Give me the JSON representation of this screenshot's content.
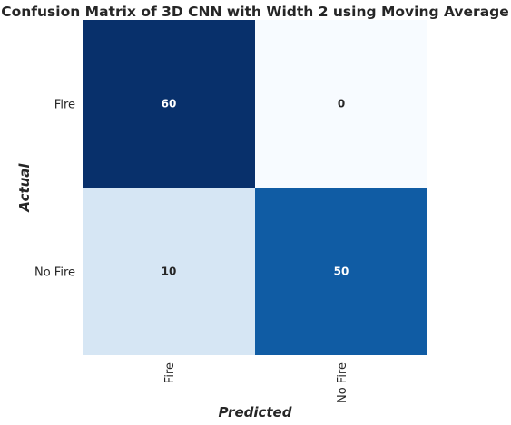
{
  "chart_data": {
    "type": "heatmap",
    "title": "Confusion Matrix of 3D CNN with Width 2 using Moving Average",
    "xlabel": "Predicted",
    "ylabel": "Actual",
    "x_categories": [
      "Fire",
      "No Fire"
    ],
    "y_categories": [
      "Fire",
      "No Fire"
    ],
    "values": [
      [
        60,
        0
      ],
      [
        10,
        50
      ]
    ],
    "colormap": "Blues",
    "vmin": 0,
    "vmax": 60,
    "annotate": true,
    "colors": {
      "cell_fire_fire": "#08306b",
      "cell_fire_nofire": "#f7fbff",
      "cell_nofire_fire": "#d6e6f4",
      "cell_nofire_nofire": "#105ba4",
      "text_dark": "#262626",
      "text_light": "#ffffff"
    }
  }
}
